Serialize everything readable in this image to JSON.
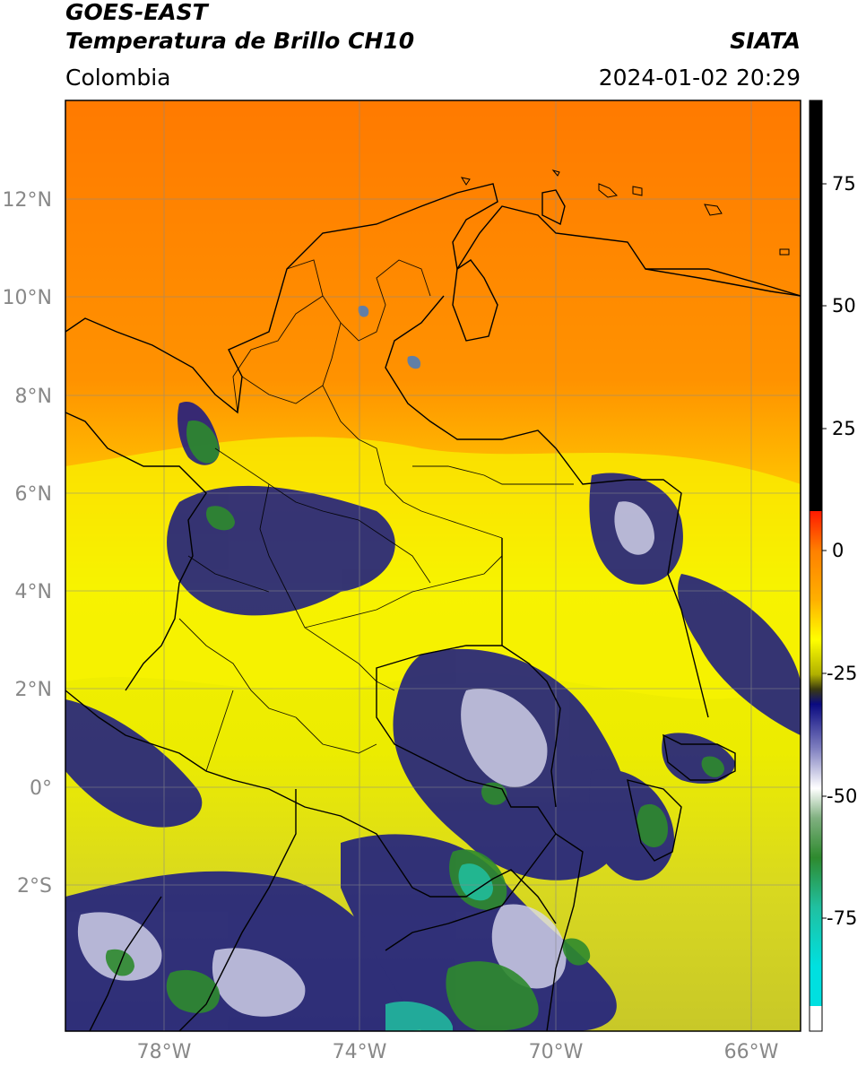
{
  "header": {
    "title_line1": "GOES-EAST",
    "title_line2": "Temperatura de Brillo CH10",
    "brand": "SIATA",
    "region": "Colombia",
    "timestamp": "2024-01-02 20:29"
  },
  "map": {
    "lon_range": [
      -80,
      -65
    ],
    "lat_range": [
      -5,
      14
    ],
    "lat_ticks": [
      {
        "value": 12,
        "label": "12°N"
      },
      {
        "value": 10,
        "label": "10°N"
      },
      {
        "value": 8,
        "label": "8°N"
      },
      {
        "value": 6,
        "label": "6°N"
      },
      {
        "value": 4,
        "label": "4°N"
      },
      {
        "value": 2,
        "label": "2°N"
      },
      {
        "value": 0,
        "label": "0°"
      },
      {
        "value": -2,
        "label": "2°S"
      }
    ],
    "lon_ticks": [
      {
        "value": -78,
        "label": "78°W"
      },
      {
        "value": -74,
        "label": "74°W"
      },
      {
        "value": -70,
        "label": "70°W"
      },
      {
        "value": -66,
        "label": "66°W"
      }
    ]
  },
  "colorbar": {
    "range": [
      -95,
      90
    ],
    "ticks": [
      {
        "value": 75,
        "label": "75"
      },
      {
        "value": 50,
        "label": "50"
      },
      {
        "value": 25,
        "label": "25"
      },
      {
        "value": 0,
        "label": "0"
      },
      {
        "value": -25,
        "label": "-25"
      },
      {
        "value": -50,
        "label": "-50"
      },
      {
        "value": -75,
        "label": "-75"
      }
    ],
    "colors": {
      "above_10": "#000000",
      "red": "#ff1a00",
      "orange": "#ff8000",
      "yellow": "#ffff00",
      "olive": "#3a3a10",
      "navy": "#0a0a80",
      "white": "#ffffff",
      "green": "#2e8a2e",
      "teal": "#20c0a0",
      "cyan": "#00e0e0"
    }
  }
}
